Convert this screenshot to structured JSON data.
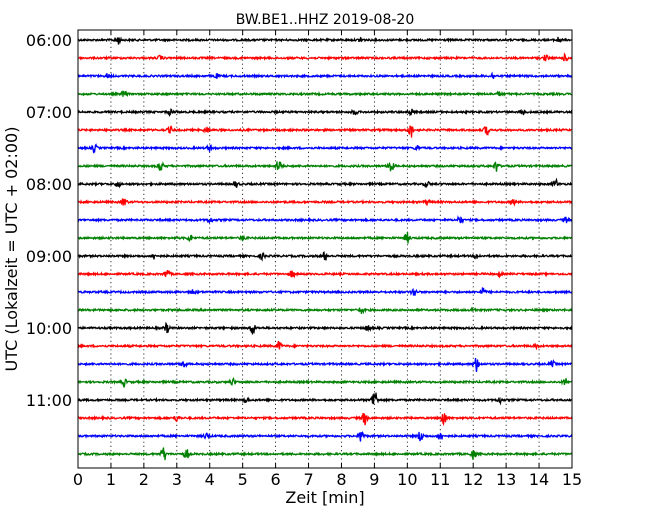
{
  "chart_data": {
    "type": "line",
    "title": "BW.BE1..HHZ 2019-08-20",
    "xlabel": "Zeit  [min]",
    "ylabel": "UTC (Lokalzeit = UTC + 02:00)",
    "xlim": [
      0,
      15
    ],
    "x_ticks": [
      0,
      1,
      2,
      3,
      4,
      5,
      6,
      7,
      8,
      9,
      10,
      11,
      12,
      13,
      14,
      15
    ],
    "x_tick_labels": [
      "0",
      "1",
      "2",
      "3",
      "4",
      "5",
      "6",
      "7",
      "8",
      "9",
      "10",
      "11",
      "12",
      "13",
      "14",
      "15"
    ],
    "y_tick_labels": [
      "06:00",
      "07:00",
      "08:00",
      "09:00",
      "10:00",
      "11:00"
    ],
    "grid": {
      "x": true,
      "y": false,
      "style": "dotted"
    },
    "colors": {
      "cycle": [
        "#000000",
        "#ff0000",
        "#0000ff",
        "#008000"
      ]
    },
    "traces": [
      {
        "start": "06:00",
        "events": [
          [
            1.2,
            0.5
          ],
          [
            8.6,
            0.35
          ],
          [
            14.6,
            0.3
          ]
        ]
      },
      {
        "start": "06:15",
        "events": [
          [
            2.5,
            0.25
          ],
          [
            14.2,
            0.3
          ],
          [
            14.8,
            0.35
          ]
        ]
      },
      {
        "start": "06:30",
        "events": [
          [
            0.9,
            0.2
          ],
          [
            4.2,
            0.2
          ],
          [
            12.6,
            0.3
          ]
        ]
      },
      {
        "start": "06:45",
        "events": [
          [
            1.4,
            0.35
          ],
          [
            12.8,
            0.2
          ]
        ]
      },
      {
        "start": "07:00",
        "events": [
          [
            2.8,
            0.3
          ],
          [
            8.4,
            0.3
          ],
          [
            10.1,
            0.35
          ],
          [
            13.5,
            0.3
          ]
        ]
      },
      {
        "start": "07:15",
        "events": [
          [
            2.8,
            0.3
          ],
          [
            3.9,
            0.3
          ],
          [
            10.1,
            0.8
          ],
          [
            12.4,
            0.5
          ]
        ]
      },
      {
        "start": "07:30",
        "events": [
          [
            0.5,
            0.4
          ],
          [
            4.0,
            0.3
          ],
          [
            10.3,
            0.25
          ]
        ]
      },
      {
        "start": "07:45",
        "events": [
          [
            2.5,
            0.65
          ],
          [
            6.1,
            0.75
          ],
          [
            9.5,
            0.7
          ],
          [
            12.7,
            0.6
          ]
        ]
      },
      {
        "start": "08:00",
        "events": [
          [
            1.2,
            0.3
          ],
          [
            4.8,
            0.3
          ],
          [
            10.6,
            0.3
          ],
          [
            14.5,
            0.45
          ]
        ]
      },
      {
        "start": "08:15",
        "events": [
          [
            1.4,
            0.45
          ],
          [
            10.6,
            0.3
          ],
          [
            13.2,
            0.3
          ]
        ]
      },
      {
        "start": "08:30",
        "events": [
          [
            4.0,
            0.3
          ],
          [
            11.6,
            0.4
          ],
          [
            14.8,
            0.3
          ]
        ]
      },
      {
        "start": "08:45",
        "events": [
          [
            3.4,
            0.3
          ],
          [
            5.0,
            0.25
          ],
          [
            10.0,
            0.55
          ]
        ]
      },
      {
        "start": "09:00",
        "events": [
          [
            2.3,
            0.3
          ],
          [
            5.6,
            0.3
          ],
          [
            7.5,
            0.45
          ],
          [
            12.1,
            0.3
          ]
        ]
      },
      {
        "start": "09:15",
        "events": [
          [
            2.7,
            0.55
          ],
          [
            6.5,
            0.35
          ],
          [
            12.8,
            0.25
          ]
        ]
      },
      {
        "start": "09:30",
        "events": [
          [
            3.5,
            0.3
          ],
          [
            10.2,
            0.45
          ],
          [
            12.3,
            0.45
          ]
        ]
      },
      {
        "start": "09:45",
        "events": [
          [
            8.6,
            0.35
          ],
          [
            12.0,
            0.2
          ]
        ]
      },
      {
        "start": "10:00",
        "events": [
          [
            2.7,
            0.45
          ],
          [
            5.3,
            0.7
          ],
          [
            8.8,
            0.3
          ]
        ]
      },
      {
        "start": "10:15",
        "events": [
          [
            6.1,
            0.45
          ],
          [
            13.9,
            0.2
          ]
        ]
      },
      {
        "start": "10:30",
        "events": [
          [
            3.2,
            0.4
          ],
          [
            12.1,
            0.75
          ],
          [
            14.4,
            0.3
          ]
        ]
      },
      {
        "start": "10:45",
        "events": [
          [
            1.4,
            0.35
          ],
          [
            4.7,
            0.35
          ],
          [
            14.8,
            0.35
          ]
        ]
      },
      {
        "start": "11:00",
        "events": [
          [
            5.1,
            0.3
          ],
          [
            9.0,
            1.3
          ],
          [
            12.8,
            0.3
          ]
        ]
      },
      {
        "start": "11:15",
        "events": [
          [
            3.0,
            0.3
          ],
          [
            8.7,
            0.7
          ],
          [
            11.1,
            0.9
          ]
        ]
      },
      {
        "start": "11:30",
        "events": [
          [
            3.9,
            0.3
          ],
          [
            8.6,
            0.7
          ],
          [
            10.4,
            0.6
          ],
          [
            11.0,
            0.5
          ]
        ]
      },
      {
        "start": "11:45",
        "events": [
          [
            2.6,
            0.75
          ],
          [
            3.3,
            0.5
          ],
          [
            12.0,
            0.5
          ]
        ]
      }
    ]
  }
}
